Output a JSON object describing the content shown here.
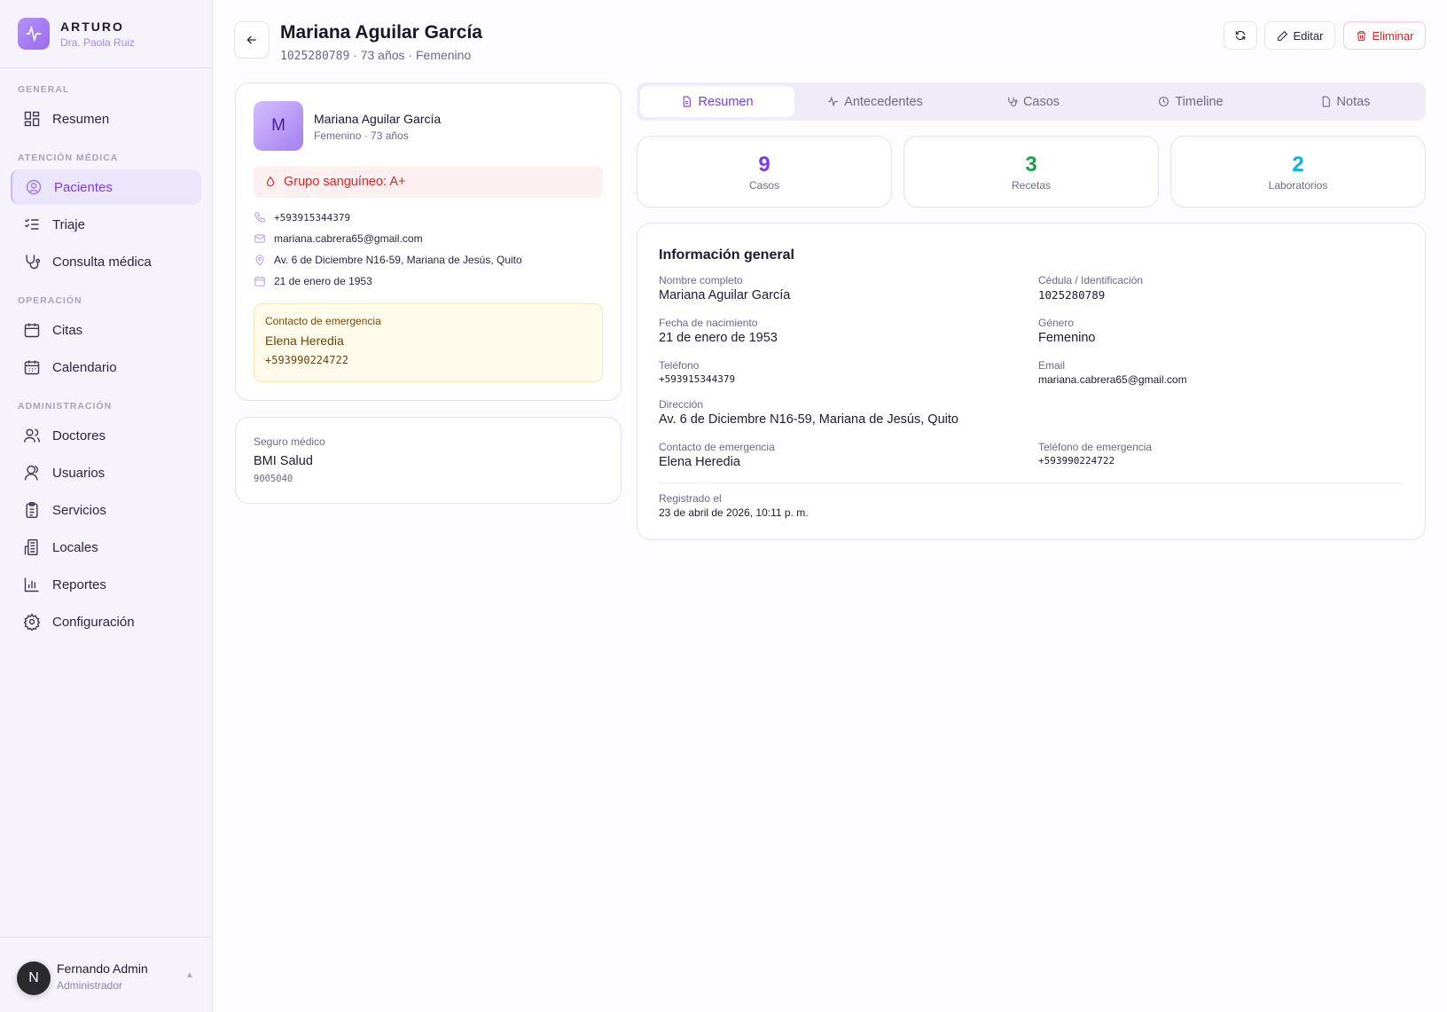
{
  "brand": {
    "name": "ARTURO",
    "subtitle": "Dra. Paola Ruiz"
  },
  "sidebar": {
    "sections": [
      {
        "label": "GENERAL"
      },
      {
        "label": "ATENCIÓN MÉDICA"
      },
      {
        "label": "OPERACIÓN"
      },
      {
        "label": "ADMINISTRACIÓN"
      }
    ],
    "items": [
      {
        "label": "Resumen",
        "icon": "grid-icon"
      },
      {
        "label": "Pacientes",
        "icon": "user-circle-icon",
        "active": true
      },
      {
        "label": "Triaje",
        "icon": "checklist-icon"
      },
      {
        "label": "Consulta médica",
        "icon": "stethoscope-icon"
      },
      {
        "label": "Citas",
        "icon": "calendar-icon"
      },
      {
        "label": "Calendario",
        "icon": "calendar-days-icon"
      },
      {
        "label": "Doctores",
        "icon": "users-icon"
      },
      {
        "label": "Usuarios",
        "icon": "user-icon"
      },
      {
        "label": "Servicios",
        "icon": "clipboard-icon"
      },
      {
        "label": "Locales",
        "icon": "building-icon"
      },
      {
        "label": "Reportes",
        "icon": "bar-chart-icon"
      },
      {
        "label": "Configuración",
        "icon": "gear-icon"
      }
    ],
    "user": {
      "initial": "N",
      "name": "Fernando Admin",
      "role": "Administrador"
    }
  },
  "header": {
    "title": "Mariana Aguilar García",
    "id": "1025280789",
    "subtitle_rest": " · 73 años · Femenino",
    "edit_label": "Editar",
    "delete_label": "Eliminar"
  },
  "profile": {
    "initial": "M",
    "name": "Mariana Aguilar García",
    "meta": "Femenino · 73 años",
    "blood": "Grupo sanguíneo: A+",
    "phone": "+593915344379",
    "email": "mariana.cabrera65@gmail.com",
    "address": "Av. 6 de Diciembre N16-59, Mariana de Jesús, Quito",
    "birth": "21 de enero de 1953",
    "emergency": {
      "title": "Contacto de emergencia",
      "name": "Elena Heredia",
      "phone": "+593990224722"
    }
  },
  "insurance": {
    "title": "Seguro médico",
    "name": "BMI Salud",
    "number": "9005040"
  },
  "tabs": [
    {
      "label": "Resumen",
      "active": true
    },
    {
      "label": "Antecedentes"
    },
    {
      "label": "Casos"
    },
    {
      "label": "Timeline"
    },
    {
      "label": "Notas"
    }
  ],
  "stats": [
    {
      "value": "9",
      "label": "Casos",
      "color": "#7c3aed"
    },
    {
      "value": "3",
      "label": "Recetas",
      "color": "#16a34a"
    },
    {
      "value": "2",
      "label": "Laboratorios",
      "color": "#06b6d4"
    }
  ],
  "info": {
    "title": "Información general",
    "fields": [
      {
        "label": "Nombre completo",
        "value": "Mariana Aguilar García"
      },
      {
        "label": "Cédula / Identificación",
        "value": "1025280789"
      },
      {
        "label": "Fecha de nacimiento",
        "value": "21 de enero de 1953"
      },
      {
        "label": "Género",
        "value": "Femenino"
      },
      {
        "label": "Teléfono",
        "value": "+593915344379"
      },
      {
        "label": "Email",
        "value": "mariana.cabrera65@gmail.com"
      },
      {
        "label": "Dirección",
        "value": "Av. 6 de Diciembre N16-59, Mariana de Jesús, Quito"
      },
      {
        "label": "Contacto de emergencia",
        "value": "Elena Heredia"
      },
      {
        "label": "Teléfono de emergencia",
        "value": "+593990224722"
      }
    ],
    "registered_label": "Registrado el",
    "registered_value": "23 de abril de 2026, 10:11 p. m."
  },
  "colors": {
    "accent": "#7c3aed",
    "danger": "#dc2626"
  }
}
